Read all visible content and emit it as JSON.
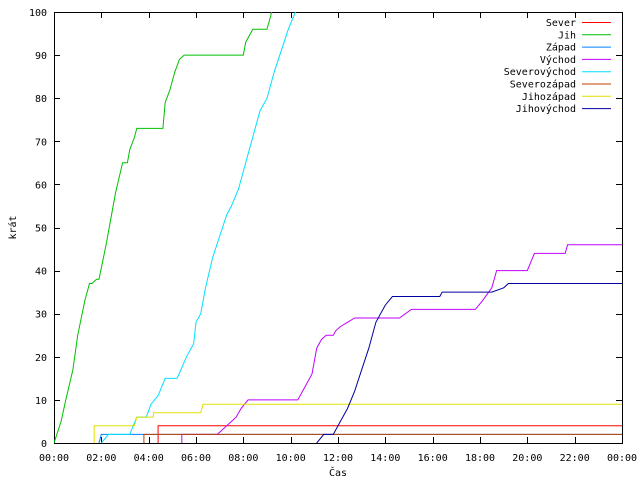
{
  "chart_data": {
    "type": "line",
    "title": "",
    "xlabel": "Čas",
    "ylabel": "krát",
    "xlim": [
      0,
      24
    ],
    "ylim": [
      0,
      100
    ],
    "grid": false,
    "legend_position": "top-right",
    "x_ticks": [
      {
        "value": 0,
        "label": "00:00"
      },
      {
        "value": 2,
        "label": "02:00"
      },
      {
        "value": 4,
        "label": "04:00"
      },
      {
        "value": 6,
        "label": "06:00"
      },
      {
        "value": 8,
        "label": "08:00"
      },
      {
        "value": 10,
        "label": "10:00"
      },
      {
        "value": 12,
        "label": "12:00"
      },
      {
        "value": 14,
        "label": "14:00"
      },
      {
        "value": 16,
        "label": "16:00"
      },
      {
        "value": 18,
        "label": "18:00"
      },
      {
        "value": 20,
        "label": "20:00"
      },
      {
        "value": 22,
        "label": "22:00"
      },
      {
        "value": 24,
        "label": "00:00"
      }
    ],
    "y_ticks": [
      0,
      10,
      20,
      30,
      40,
      50,
      60,
      70,
      80,
      90,
      100
    ],
    "series": [
      {
        "name": "Sever",
        "color": "#ff0000",
        "x": [
          4.4,
          4.4,
          24
        ],
        "y": [
          0,
          4,
          4
        ]
      },
      {
        "name": "Jih",
        "color": "#00c000",
        "x": [
          0,
          0.3,
          0.5,
          0.8,
          1.0,
          1.3,
          1.5,
          1.6,
          1.8,
          1.9,
          2.2,
          2.4,
          2.6,
          2.9,
          3.1,
          3.2,
          3.4,
          3.5,
          3.7,
          3.8,
          4.6,
          4.7,
          4.9,
          5.1,
          5.3,
          5.5,
          5.7,
          6.6,
          7.0,
          8.0,
          8.1,
          8.3,
          8.4,
          8.6,
          9.0,
          9.1,
          9.2
        ],
        "y": [
          0,
          5,
          10,
          17,
          25,
          33,
          37,
          37,
          38,
          38,
          46,
          52,
          58,
          65,
          65,
          68,
          71,
          73,
          73,
          73,
          73,
          79,
          82,
          86,
          89,
          90,
          90,
          90,
          90,
          90,
          93,
          95,
          96,
          96,
          96,
          98,
          100
        ]
      },
      {
        "name": "Západ",
        "color": "#0080ff",
        "x": [
          1.9,
          2.0,
          24
        ],
        "y": [
          0,
          2,
          2
        ]
      },
      {
        "name": "Východ",
        "color": "#c000ff",
        "x": [
          5.4,
          5.4,
          6.9,
          7.7,
          7.9,
          8.2,
          10.3,
          10.6,
          10.9,
          11.1,
          11.3,
          11.5,
          11.8,
          11.9,
          12.1,
          12.4,
          12.7,
          12.9,
          13.1,
          13.4,
          14.6,
          15.1,
          17.8,
          18.1,
          18.5,
          18.7,
          20.0,
          20.3,
          21.6,
          21.7,
          24
        ],
        "y": [
          0,
          2,
          2,
          6,
          8,
          10,
          10,
          13,
          16,
          22,
          24,
          25,
          25,
          26,
          27,
          28,
          29,
          29,
          29,
          29,
          29,
          31,
          31,
          33,
          36,
          40,
          40,
          44,
          44,
          46,
          46
        ]
      },
      {
        "name": "Severovýchod",
        "color": "#00e0ff",
        "x": [
          2.0,
          2.3,
          3.2,
          3.5,
          3.9,
          4.1,
          4.4,
          4.7,
          4.9,
          5.0,
          5.2,
          5.6,
          5.9,
          6.0,
          6.2,
          6.4,
          6.7,
          7.0,
          7.3,
          7.5,
          7.8,
          8.1,
          8.4,
          8.7,
          9.0,
          9.3,
          9.6,
          9.9,
          10.2
        ],
        "y": [
          0,
          2,
          2,
          6,
          6,
          9,
          11,
          15,
          15,
          15,
          15,
          20,
          23,
          28,
          30,
          36,
          43,
          48,
          53,
          55,
          59,
          65,
          71,
          77,
          80,
          86,
          91,
          96,
          100
        ]
      },
      {
        "name": "Severozápad",
        "color": "#c04000",
        "x": [
          3.8,
          3.8,
          24
        ],
        "y": [
          0,
          2,
          2
        ]
      },
      {
        "name": "Jihozápad",
        "color": "#e0e000",
        "x": [
          1.7,
          1.7,
          3.4,
          3.5,
          4.2,
          4.2,
          6.2,
          6.3,
          24
        ],
        "y": [
          0,
          4,
          4,
          6,
          6,
          7,
          7,
          9,
          9
        ]
      },
      {
        "name": "Jihovýchod",
        "color": "#0000a0",
        "x": [
          11.1,
          11.4,
          11.8,
          12.1,
          12.4,
          12.7,
          13.0,
          13.3,
          13.6,
          14.0,
          14.3,
          14.7,
          15.0,
          16.3,
          16.4,
          18.5,
          19.0,
          19.2,
          24
        ],
        "y": [
          0,
          2,
          2,
          5,
          8,
          12,
          17,
          22,
          28,
          32,
          34,
          34,
          34,
          34,
          35,
          35,
          36,
          37,
          37
        ]
      }
    ]
  }
}
